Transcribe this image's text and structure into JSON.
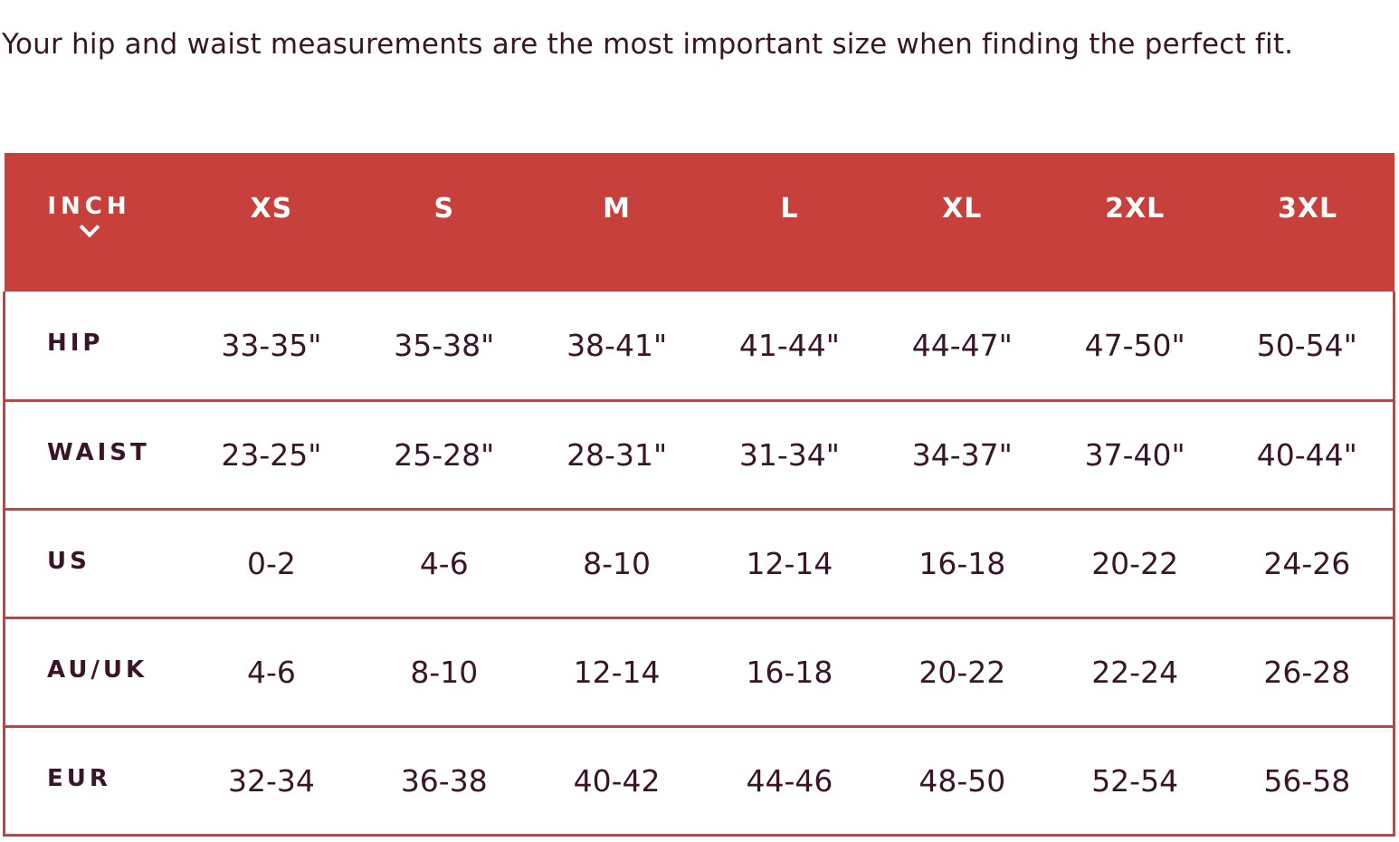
{
  "intro_text": "Your hip and waist measurements are the most important size when finding the perfect fit.",
  "table": {
    "unit_label": "INCH",
    "unit_icon": "chevron-down-icon",
    "sizes": [
      "XS",
      "S",
      "M",
      "L",
      "XL",
      "2XL",
      "3XL"
    ],
    "rows": [
      {
        "label": "HIP",
        "values": [
          "33-35\"",
          "35-38\"",
          "38-41\"",
          "41-44\"",
          "44-47\"",
          "47-50\"",
          "50-54\""
        ]
      },
      {
        "label": "WAIST",
        "values": [
          "23-25\"",
          "25-28\"",
          "28-31\"",
          "31-34\"",
          "34-37\"",
          "37-40\"",
          "40-44\""
        ]
      },
      {
        "label": "US",
        "values": [
          "0-2",
          "4-6",
          "8-10",
          "12-14",
          "16-18",
          "20-22",
          "24-26"
        ]
      },
      {
        "label": "AU/UK",
        "values": [
          "4-6",
          "8-10",
          "12-14",
          "16-18",
          "20-22",
          "22-24",
          "26-28"
        ]
      },
      {
        "label": "EUR",
        "values": [
          "32-34",
          "36-38",
          "40-42",
          "44-46",
          "48-50",
          "52-54",
          "56-58"
        ]
      }
    ]
  },
  "colors": {
    "header_bg": "#c8403b",
    "text": "#3a1528",
    "border": "#c8403b"
  }
}
